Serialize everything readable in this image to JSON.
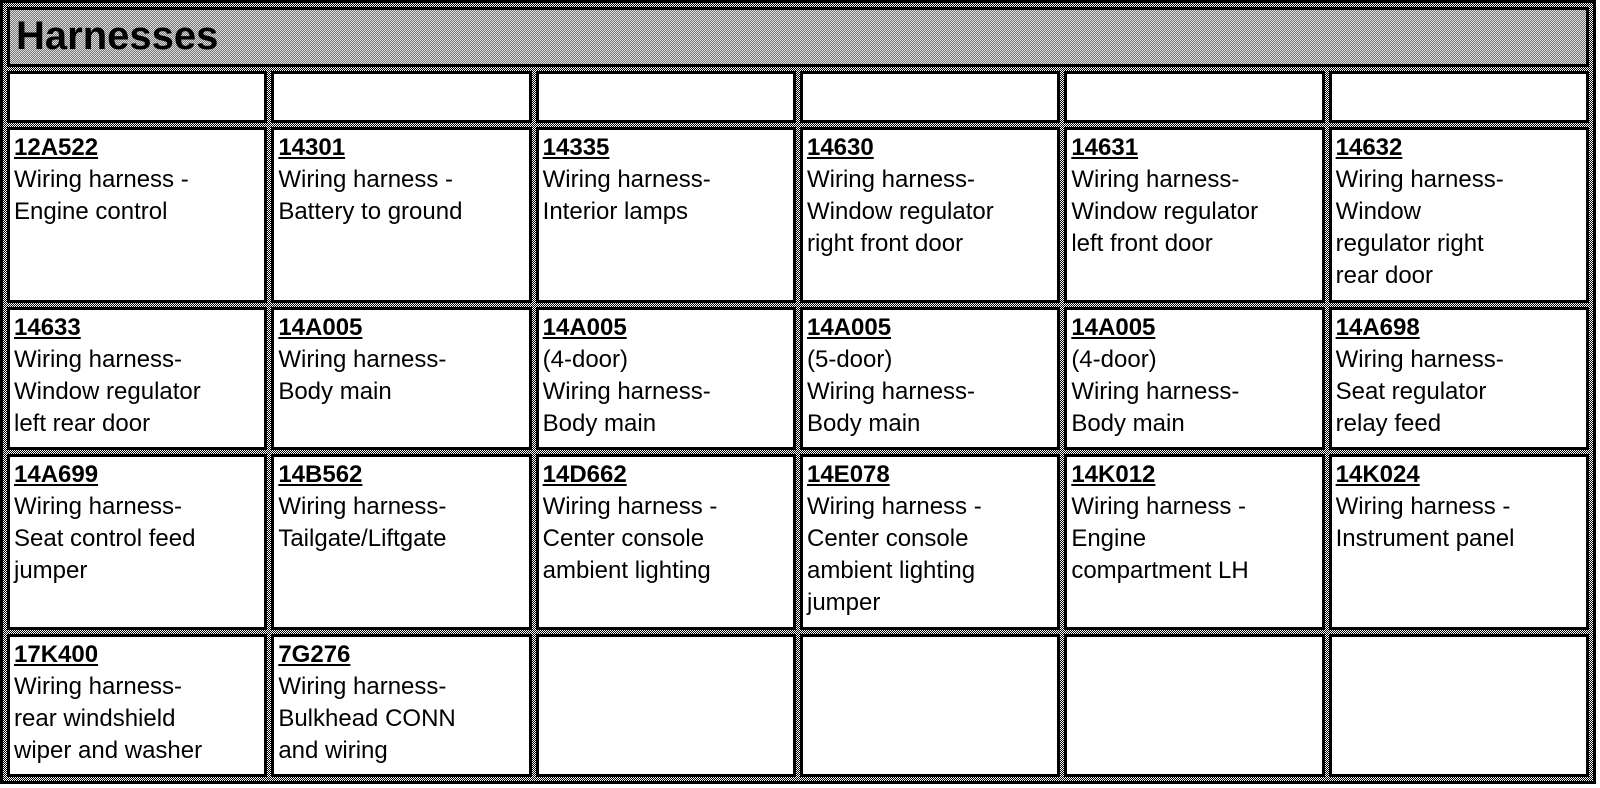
{
  "title": "Harnesses",
  "header_row": [
    "",
    "",
    "",
    "",
    "",
    ""
  ],
  "rows": [
    [
      {
        "code": "12A522",
        "desc": "Wiring harness -\nEngine control"
      },
      {
        "code": "14301",
        "desc": "Wiring harness -\nBattery to ground"
      },
      {
        "code": "14335",
        "desc": "Wiring harness-\nInterior lamps"
      },
      {
        "code": "14630",
        "desc": "Wiring harness-\nWindow regulator\nright front door"
      },
      {
        "code": "14631",
        "desc": "Wiring harness-\nWindow regulator\nleft front door"
      },
      {
        "code": "14632",
        "desc": "Wiring harness-\nWindow\nregulator right\nrear door"
      }
    ],
    [
      {
        "code": "14633",
        "desc": "Wiring harness-\nWindow regulator\nleft rear door"
      },
      {
        "code": "14A005",
        "desc": "Wiring harness-\nBody main"
      },
      {
        "code": "14A005",
        "desc": "(4-door)\nWiring harness-\nBody main"
      },
      {
        "code": "14A005",
        "desc": "(5-door)\nWiring harness-\nBody main"
      },
      {
        "code": "14A005",
        "desc": "(4-door)\nWiring harness-\nBody main"
      },
      {
        "code": "14A698",
        "desc": "Wiring harness-\nSeat regulator\nrelay feed"
      }
    ],
    [
      {
        "code": "14A699",
        "desc": "Wiring harness-\nSeat control feed\njumper"
      },
      {
        "code": "14B562",
        "desc": "Wiring harness-\nTailgate/Liftgate"
      },
      {
        "code": "14D662",
        "desc": "Wiring harness -\nCenter console\nambient lighting"
      },
      {
        "code": "14E078",
        "desc": "Wiring harness -\nCenter console\nambient lighting\njumper"
      },
      {
        "code": "14K012",
        "desc": "Wiring harness -\nEngine\ncompartment LH"
      },
      {
        "code": "14K024",
        "desc": "Wiring harness -\nInstrument panel"
      }
    ],
    [
      {
        "code": "17K400",
        "desc": "Wiring harness-\nrear windshield\nwiper and washer"
      },
      {
        "code": "7G276",
        "desc": "Wiring harness-\nBulkhead CONN\nand wiring"
      },
      null,
      null,
      null,
      null
    ]
  ]
}
